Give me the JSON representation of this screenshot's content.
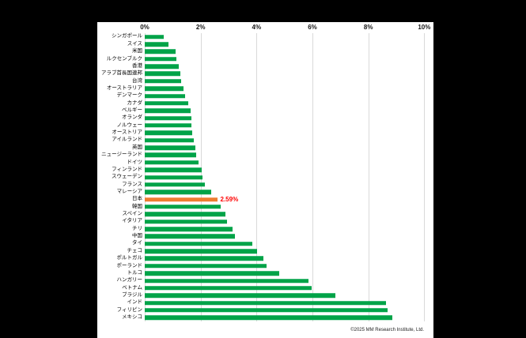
{
  "chart_data": {
    "type": "bar",
    "orientation": "horizontal",
    "title": "",
    "x_axis": {
      "position": "top",
      "min": 0,
      "max": 10,
      "ticks": [
        "0%",
        "2%",
        "4%",
        "6%",
        "8%",
        "10%"
      ],
      "grid": true
    },
    "categories": [
      "シンガポール",
      "スイス",
      "米国",
      "ルクセンブルク",
      "香港",
      "アラブ首長国連邦",
      "台湾",
      "オーストラリア",
      "デンマーク",
      "カナダ",
      "ベルギー",
      "オランダ",
      "ノルウェー",
      "オーストリア",
      "アイルランド",
      "英国",
      "ニュージーランド",
      "ドイツ",
      "フィンランド",
      "スウェーデン",
      "フランス",
      "マレーシア",
      "日本",
      "韓国",
      "スペイン",
      "イタリア",
      "チリ",
      "中国",
      "タイ",
      "チェコ",
      "ポルトガル",
      "ポーランド",
      "トルコ",
      "ハンガリー",
      "ベトナム",
      "ブラジル",
      "インド",
      "フィリピン",
      "メキシコ"
    ],
    "values": [
      0.69,
      0.84,
      1.1,
      1.14,
      1.23,
      1.26,
      1.3,
      1.38,
      1.45,
      1.55,
      1.63,
      1.66,
      1.68,
      1.7,
      1.75,
      1.8,
      1.85,
      1.92,
      2.03,
      2.06,
      2.15,
      2.37,
      2.59,
      2.72,
      2.89,
      2.95,
      3.15,
      3.22,
      3.85,
      4.03,
      4.25,
      4.35,
      4.82,
      5.87,
      5.98,
      6.83,
      8.64,
      8.68,
      8.87
    ],
    "highlight": {
      "category": "日本",
      "index": 22,
      "label": "2.59%"
    },
    "colors": {
      "bar": "#00A348",
      "highlight_bar": "#ED7D31",
      "highlight_label": "#FF0000",
      "gridline": "#D9D9D9"
    },
    "legend": null
  },
  "footer": {
    "copyright": "©2025 MM Research Institute, Ltd."
  }
}
